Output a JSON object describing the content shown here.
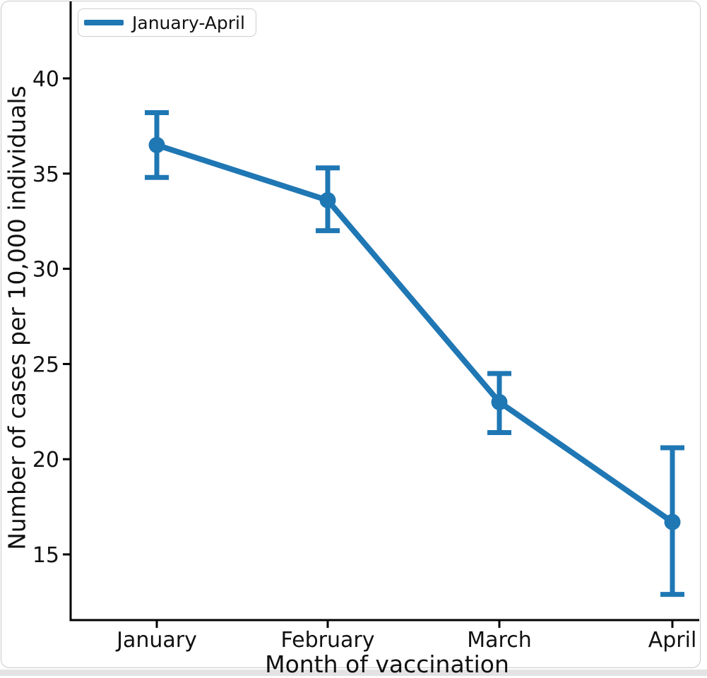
{
  "page": {
    "background_color": "#ffffff",
    "footer_strip_color": "#e3e3e3",
    "card_border_color": "#c9c9c9",
    "axis_color": "#000000",
    "text_color": "#111111"
  },
  "chart_data": {
    "type": "line",
    "title": "",
    "xlabel": "Month of vaccination",
    "ylabel": "Number of cases per 10,000 individuals",
    "categories": [
      "January",
      "February",
      "March",
      "April"
    ],
    "series": [
      {
        "name": "January-April",
        "color": "#1f77b4",
        "values": [
          36.5,
          33.6,
          23.0,
          16.7
        ],
        "error_low": [
          34.8,
          32.0,
          21.4,
          12.9
        ],
        "error_high": [
          38.2,
          35.3,
          24.5,
          20.6
        ]
      }
    ],
    "yticks": [
      15,
      20,
      25,
      30,
      35,
      40
    ],
    "ylim_visible": [
      11.55,
      44.0
    ],
    "grid": false,
    "error_bars": true,
    "legend": {
      "position": "upper-left",
      "label": "January-April"
    }
  }
}
